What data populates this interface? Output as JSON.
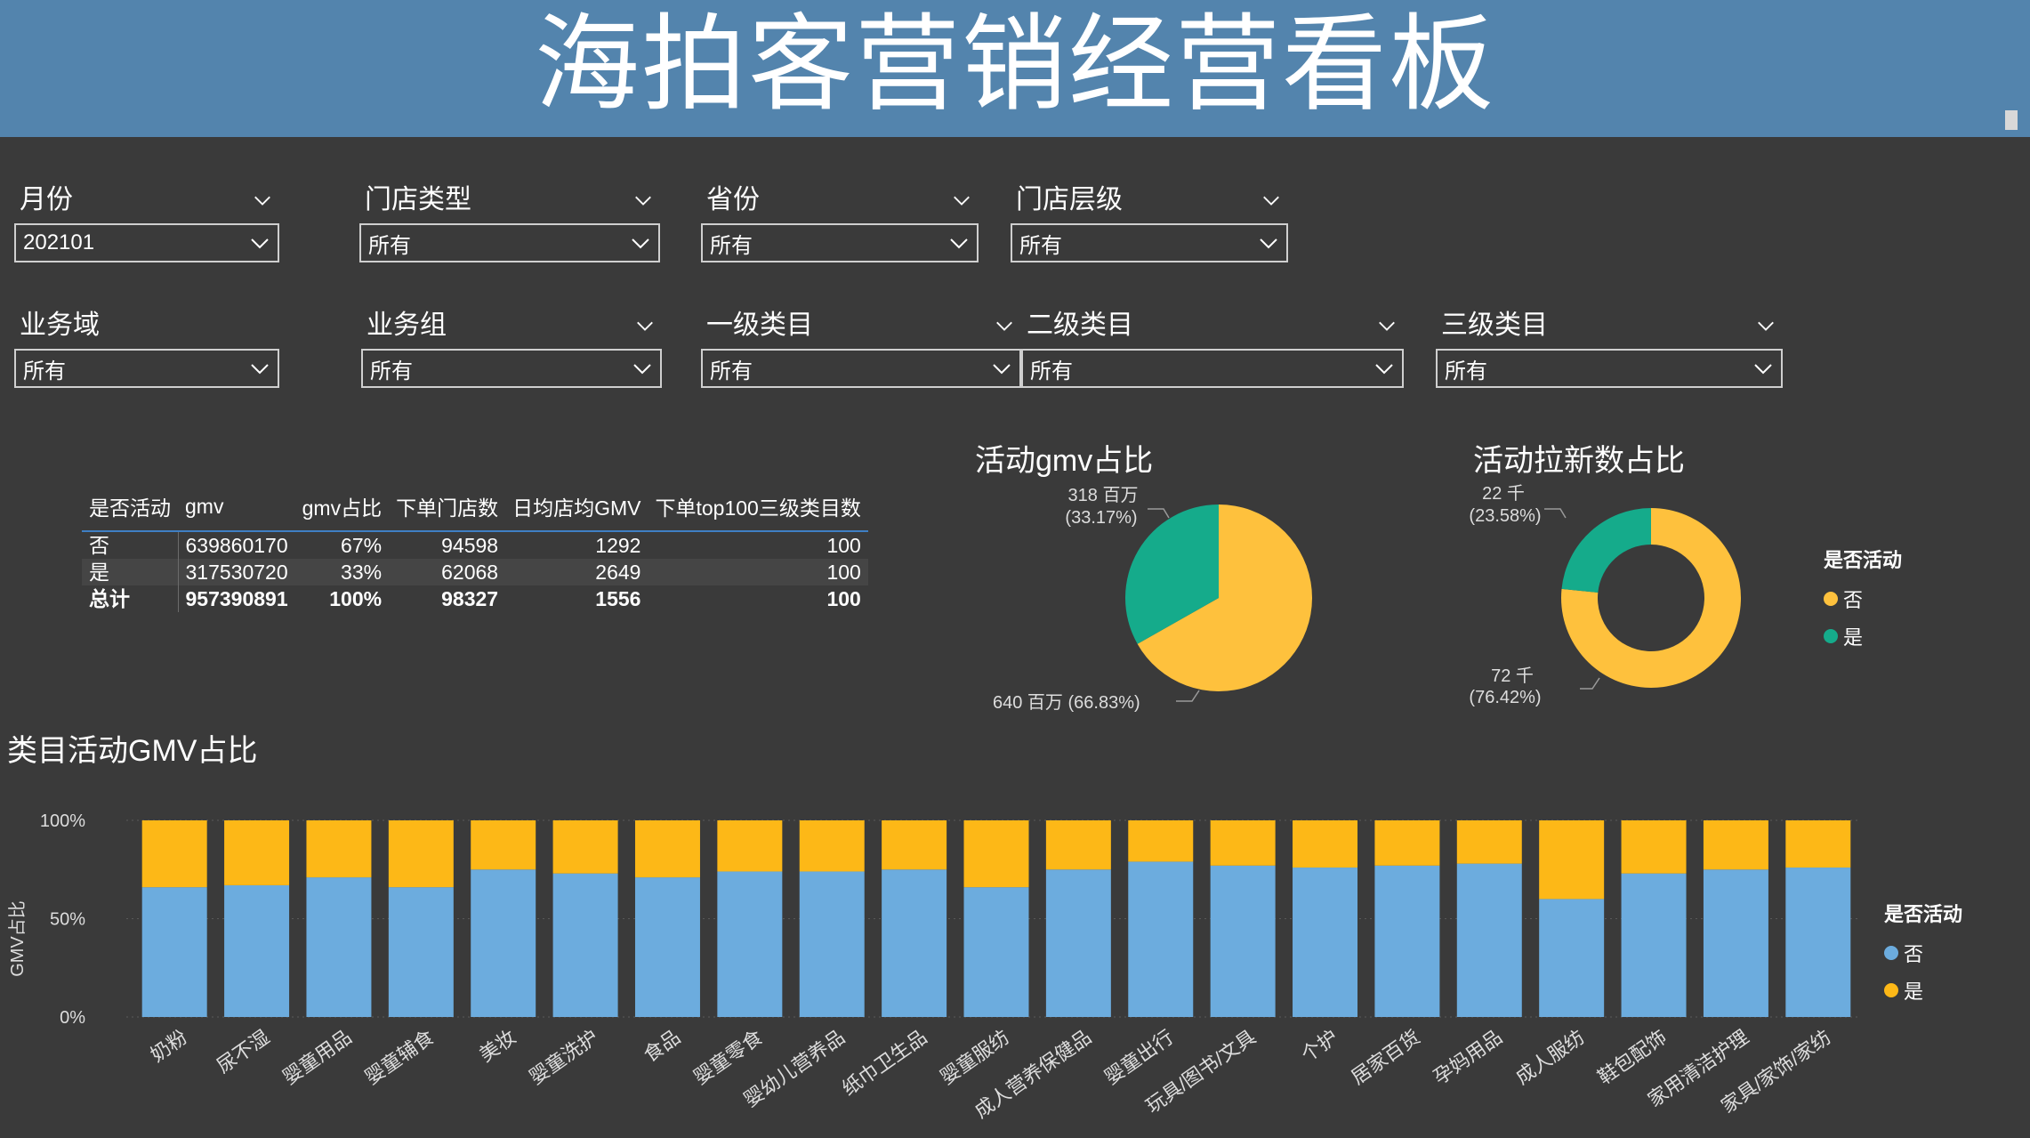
{
  "header": {
    "title": "海拍客营销经营看板"
  },
  "filters": [
    {
      "label": "月份",
      "value": "202101"
    },
    {
      "label": "门店类型",
      "value": "所有"
    },
    {
      "label": "省份",
      "value": "所有"
    },
    {
      "label": "门店层级",
      "value": "所有"
    },
    {
      "label": "业务域",
      "value": "所有"
    },
    {
      "label": "业务组",
      "value": "所有"
    },
    {
      "label": "一级类目",
      "value": "所有"
    },
    {
      "label": "二级类目",
      "value": "所有"
    },
    {
      "label": "三级类目",
      "value": "所有"
    }
  ],
  "table": {
    "headers": [
      "是否活动",
      "gmv",
      "gmv占比",
      "下单门店数",
      "日均店均GMV",
      "下单top100三级类目数"
    ],
    "rows": [
      [
        "否",
        "639860170",
        "67%",
        "94598",
        "1292",
        "100"
      ],
      [
        "是",
        "317530720",
        "33%",
        "62068",
        "2649",
        "100"
      ],
      [
        "总计",
        "957390891",
        "100%",
        "98327",
        "1556",
        "100"
      ]
    ]
  },
  "colors": {
    "no": "#fec13d",
    "yes": "#15ab8b",
    "bar_no": "#6cacde",
    "bar_yes": "#fdb817"
  },
  "chart_data": [
    {
      "type": "pie",
      "title": "活动gmv占比",
      "slices": [
        {
          "name": "否",
          "value": 640,
          "label": "640 百万 (66.83%)"
        },
        {
          "name": "是",
          "value": 318,
          "label_line1": "318 百万",
          "label_line2": "(33.17%)"
        }
      ]
    },
    {
      "type": "pie",
      "title": "活动拉新数占比",
      "donut": true,
      "slices": [
        {
          "name": "否",
          "value": 72,
          "label_line1": "72 千",
          "label_line2": "(76.42%)"
        },
        {
          "name": "是",
          "value": 22,
          "label_line1": "22 千",
          "label_line2": "(23.58%)"
        }
      ],
      "legend": {
        "title": "是否活动",
        "items": [
          "否",
          "是"
        ],
        "position": "right"
      }
    },
    {
      "type": "bar",
      "stacked": true,
      "title": "类目活动GMV占比",
      "ylabel": "GMV占比",
      "ylim": [
        0,
        100
      ],
      "yticks": [
        "0%",
        "50%",
        "100%"
      ],
      "categories": [
        "奶粉",
        "尿不湿",
        "婴童用品",
        "婴童辅食",
        "美妆",
        "婴童洗护",
        "食品",
        "婴童零食",
        "婴幼儿营养品",
        "纸巾卫生品",
        "婴童服纺",
        "成人营养保健品",
        "婴童出行",
        "玩具/图书/文具",
        "个护",
        "居家百货",
        "孕妈用品",
        "成人服纺",
        "鞋包配饰",
        "家用清洁护理",
        "家具/家饰/家纺"
      ],
      "series": [
        {
          "name": "否",
          "values": [
            66,
            67,
            71,
            66,
            75,
            73,
            71,
            74,
            74,
            75,
            66,
            75,
            79,
            77,
            76,
            77,
            78,
            60,
            73,
            75,
            76
          ]
        },
        {
          "name": "是",
          "values": [
            34,
            33,
            29,
            34,
            25,
            27,
            29,
            26,
            26,
            25,
            34,
            25,
            21,
            23,
            24,
            23,
            22,
            40,
            27,
            25,
            24
          ]
        }
      ],
      "legend": {
        "title": "是否活动",
        "items": [
          "否",
          "是"
        ],
        "position": "right"
      }
    }
  ]
}
